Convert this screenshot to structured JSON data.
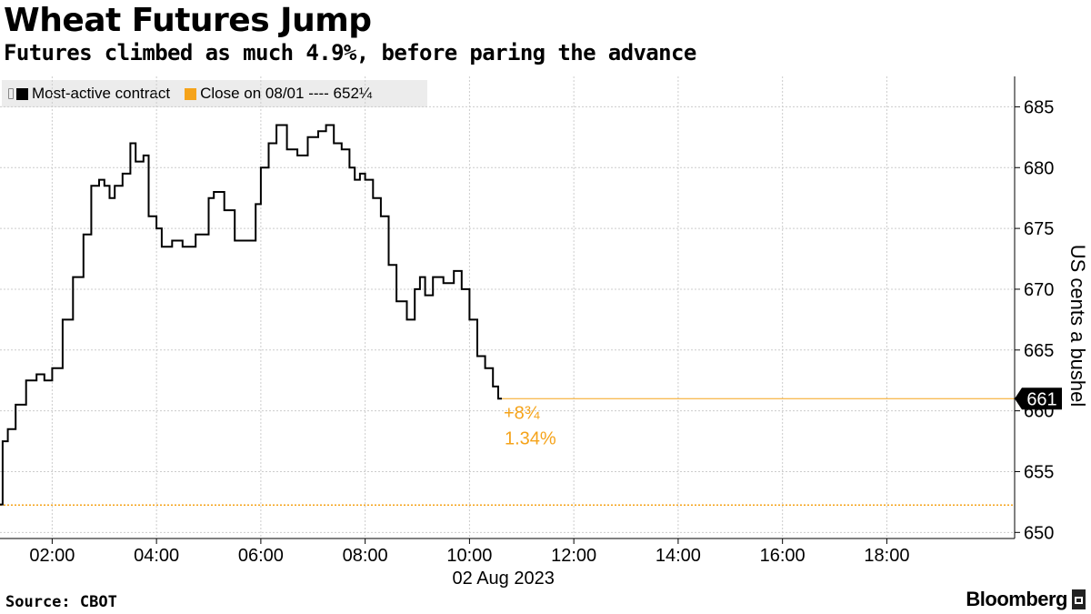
{
  "header": {
    "title": "Wheat Futures Jump",
    "subtitle": "Futures climbed as much 4.9%, before paring the advance"
  },
  "legend": {
    "items": [
      {
        "label": "Most-active contract",
        "color": "#000000"
      },
      {
        "label": "Close on 08/01 ---- 652¼",
        "color": "#f5a31a"
      }
    ]
  },
  "footer": {
    "source": "Source: CBOT",
    "brand": "Bloomberg"
  },
  "chart_data": {
    "type": "line",
    "title": "Wheat Futures Jump",
    "subtitle": "Futures climbed as much 4.9%, before paring the advance",
    "xlabel": "02 Aug 2023",
    "ylabel": "US cents a bushel",
    "x_ticks": [
      "02:00",
      "04:00",
      "06:00",
      "08:00",
      "10:00",
      "12:00",
      "14:00",
      "16:00",
      "18:00"
    ],
    "x_tick_hours": [
      2,
      4,
      6,
      8,
      10,
      12,
      14,
      16,
      18
    ],
    "x_range_hours": [
      1.0,
      20.45
    ],
    "y_ticks": [
      "650",
      "655",
      "660",
      "665",
      "670",
      "675",
      "680",
      "685"
    ],
    "ylim": [
      649.5,
      687.5
    ],
    "grid": true,
    "y_axis_position": "right",
    "legend_position": "top-left",
    "colors": {
      "series": "#000000",
      "reference": "#f5a31a",
      "grid": "#cccccc"
    },
    "series": [
      {
        "name": "Most-active contract",
        "x": [
          1.0,
          1.05,
          1.15,
          1.3,
          1.5,
          1.7,
          1.85,
          2.0,
          2.2,
          2.4,
          2.6,
          2.75,
          2.9,
          3.0,
          3.1,
          3.2,
          3.35,
          3.5,
          3.6,
          3.75,
          3.85,
          4.0,
          4.1,
          4.3,
          4.5,
          4.75,
          5.0,
          5.1,
          5.3,
          5.5,
          5.75,
          5.9,
          6.0,
          6.15,
          6.3,
          6.5,
          6.7,
          6.9,
          7.1,
          7.25,
          7.4,
          7.55,
          7.7,
          7.8,
          7.9,
          8.0,
          8.15,
          8.3,
          8.45,
          8.6,
          8.8,
          8.95,
          9.05,
          9.15,
          9.3,
          9.5,
          9.7,
          9.85,
          10.0,
          10.15,
          10.3,
          10.45,
          10.55,
          10.62
        ],
        "values": [
          652.3,
          657.5,
          658.5,
          660.5,
          662.5,
          663.0,
          662.5,
          663.5,
          667.5,
          671.0,
          674.5,
          678.5,
          679.0,
          678.5,
          677.5,
          678.5,
          679.5,
          682.0,
          680.5,
          681.0,
          676.0,
          675.0,
          673.5,
          674.0,
          673.5,
          674.5,
          677.5,
          678.0,
          676.5,
          674.0,
          674.0,
          677.0,
          680.0,
          682.0,
          683.5,
          681.5,
          681.0,
          682.5,
          683.0,
          683.5,
          682.0,
          681.5,
          680.0,
          679.0,
          679.5,
          679.0,
          677.5,
          676.0,
          672.0,
          669.0,
          667.5,
          670.0,
          671.0,
          669.5,
          671.0,
          670.5,
          671.5,
          670.0,
          667.5,
          664.5,
          663.5,
          662.0,
          661.0,
          661.0
        ]
      }
    ],
    "reference_line": {
      "label": "Close on 08/01",
      "value": 652.25
    },
    "last_value_label": "661",
    "last_value": 661.0,
    "change_annotation": {
      "abs": "+8¾",
      "pct": "1.34%"
    }
  }
}
